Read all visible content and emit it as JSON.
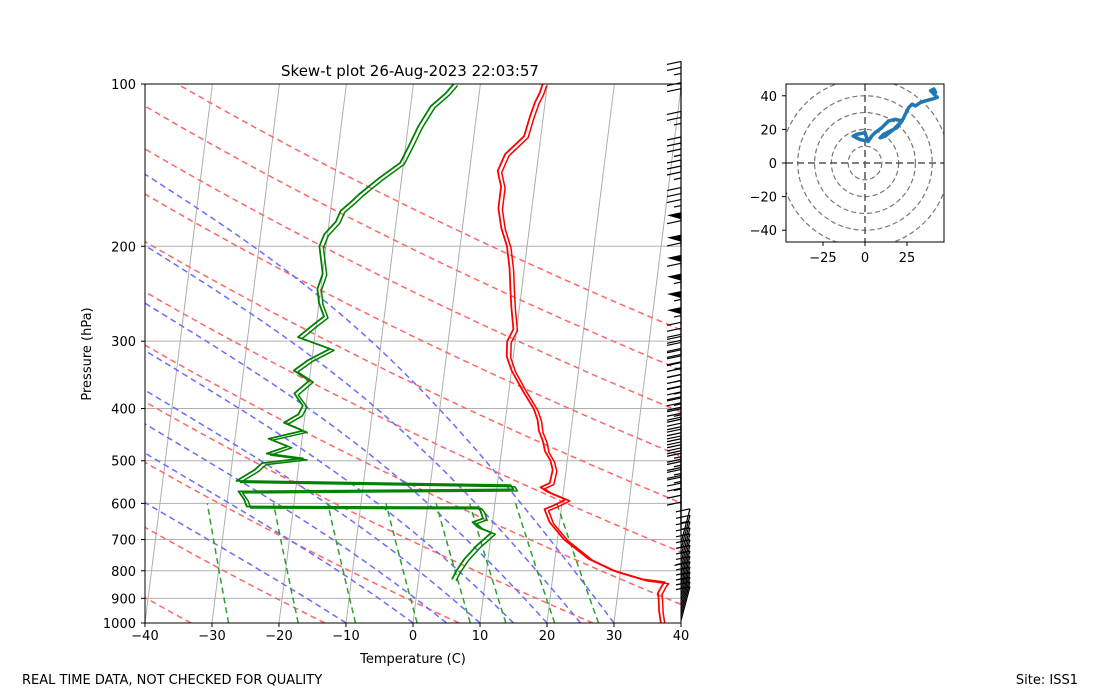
{
  "footer": {
    "quality_note": "REAL TIME DATA, NOT CHECKED FOR QUALITY",
    "site": "Site: ISS1"
  },
  "colors": {
    "temperature": "#ff0000",
    "dewpoint": "#008000",
    "dry_adiabat": "#ff6666",
    "moist_adiabat": "#6b6bff",
    "mixing_ratio": "#2ca02c",
    "isotherm": "#b0b0b0",
    "hodograph": "#1f77b4",
    "barb": "#000000"
  },
  "chart_data": [
    {
      "type": "line",
      "subtype": "skew-t",
      "title": "Skew-t plot 26-Aug-2023 22:03:57",
      "xlabel": "Temperature (C)",
      "ylabel": "Pressure (hPa)",
      "xlim": [
        -40,
        40
      ],
      "ylim": [
        1000,
        100
      ],
      "x_ticks": [
        "−40",
        "−30",
        "−20",
        "−10",
        "0",
        "10",
        "20",
        "30",
        "40"
      ],
      "x_tick_values": [
        -40,
        -30,
        -20,
        -10,
        0,
        10,
        20,
        30,
        40
      ],
      "y_ticks": [
        "1000",
        "900",
        "800",
        "700",
        "600",
        "500",
        "400",
        "300",
        "200",
        "100"
      ],
      "y_tick_values": [
        1000,
        900,
        800,
        700,
        600,
        500,
        400,
        300,
        200,
        100
      ],
      "isotherms": [
        -120,
        -110,
        -100,
        -90,
        -80,
        -70,
        -60,
        -50,
        -40,
        -30,
        -20,
        -10,
        0,
        10,
        20,
        30,
        40
      ],
      "dry_adiabats_theta_K": [
        240,
        260,
        280,
        300,
        320,
        340,
        360,
        380,
        400,
        420,
        440
      ],
      "moist_adiabats_thetaw_C": [
        -10,
        0,
        5,
        10,
        15,
        20,
        25,
        30
      ],
      "mixing_ratio_lines_gkg": [
        0.4,
        1,
        2,
        4,
        7,
        10,
        16,
        24
      ],
      "series": [
        {
          "name": "temperature",
          "points": [
            [
              1000,
              37.0
            ],
            [
              950,
              36.5
            ],
            [
              900,
              36.2
            ],
            [
              880,
              36.0
            ],
            [
              850,
              36.5
            ],
            [
              840,
              36.8
            ],
            [
              830,
              33.5
            ],
            [
              800,
              29.0
            ],
            [
              760,
              25.0
            ],
            [
              700,
              21.0
            ],
            [
              650,
              18.5
            ],
            [
              615,
              17.5
            ],
            [
              605,
              18.8
            ],
            [
              590,
              20.5
            ],
            [
              580,
              19.0
            ],
            [
              570,
              17.5
            ],
            [
              560,
              16.5
            ],
            [
              550,
              17.8
            ],
            [
              520,
              18.0
            ],
            [
              500,
              17.5
            ],
            [
              480,
              16.5
            ],
            [
              460,
              16.0
            ],
            [
              440,
              15.2
            ],
            [
              420,
              14.8
            ],
            [
              400,
              14.0
            ],
            [
              370,
              12.0
            ],
            [
              340,
              10.0
            ],
            [
              320,
              9.0
            ],
            [
              300,
              8.8
            ],
            [
              285,
              9.5
            ],
            [
              260,
              8.8
            ],
            [
              240,
              8.3
            ],
            [
              220,
              7.8
            ],
            [
              200,
              7.0
            ],
            [
              185,
              5.8
            ],
            [
              170,
              5.0
            ],
            [
              155,
              5.0
            ],
            [
              145,
              4.2
            ],
            [
              135,
              5.0
            ],
            [
              125,
              7.5
            ],
            [
              115,
              8.0
            ],
            [
              108,
              8.5
            ],
            [
              104,
              9.0
            ],
            [
              100,
              9.3
            ]
          ]
        },
        {
          "name": "dewpoint",
          "points": [
            [
              830,
              5.0
            ],
            [
              800,
              5.5
            ],
            [
              760,
              6.5
            ],
            [
              720,
              8.0
            ],
            [
              700,
              9.0
            ],
            [
              680,
              10.0
            ],
            [
              665,
              8.0
            ],
            [
              650,
              7.0
            ],
            [
              640,
              8.5
            ],
            [
              620,
              8.0
            ],
            [
              610,
              7.5
            ],
            [
              608,
              -27.0
            ],
            [
              590,
              -27.5
            ],
            [
              570,
              -28.5
            ],
            [
              565,
              12.5
            ],
            [
              555,
              12.0
            ],
            [
              545,
              -29.0
            ],
            [
              520,
              -26.5
            ],
            [
              505,
              -25.5
            ],
            [
              495,
              -19.5
            ],
            [
              485,
              -25.0
            ],
            [
              470,
              -22.0
            ],
            [
              455,
              -25.0
            ],
            [
              440,
              -20.0
            ],
            [
              425,
              -23.0
            ],
            [
              410,
              -21.0
            ],
            [
              395,
              -20.5
            ],
            [
              375,
              -22.0
            ],
            [
              355,
              -20.0
            ],
            [
              340,
              -22.5
            ],
            [
              325,
              -20.5
            ],
            [
              310,
              -17.5
            ],
            [
              295,
              -22.5
            ],
            [
              280,
              -20.5
            ],
            [
              270,
              -19.0
            ],
            [
              255,
              -20.0
            ],
            [
              240,
              -20.5
            ],
            [
              225,
              -20.0
            ],
            [
              212,
              -20.5
            ],
            [
              200,
              -21.0
            ],
            [
              190,
              -20.5
            ],
            [
              180,
              -19.0
            ],
            [
              172,
              -18.5
            ],
            [
              165,
              -17.0
            ],
            [
              160,
              -16.0
            ],
            [
              150,
              -13.5
            ],
            [
              140,
              -10.5
            ],
            [
              130,
              -9.5
            ],
            [
              120,
              -8.5
            ],
            [
              110,
              -7.0
            ],
            [
              104,
              -5.0
            ],
            [
              100,
              -4.0
            ]
          ]
        }
      ],
      "wind_barbs_pressure_hPa": [
        990,
        970,
        950,
        930,
        910,
        890,
        870,
        850,
        830,
        810,
        790,
        770,
        750,
        730,
        710,
        690,
        670,
        650,
        620,
        600,
        580,
        560,
        540,
        520,
        500,
        480,
        460,
        440,
        420,
        400,
        380,
        360,
        340,
        320,
        300,
        280,
        260,
        240,
        220,
        200,
        180,
        160,
        145,
        130,
        115,
        105
      ],
      "wind_barbs_speed_kt": [
        10,
        10,
        10,
        15,
        15,
        15,
        20,
        15,
        15,
        15,
        15,
        15,
        15,
        15,
        10,
        10,
        10,
        10,
        25,
        25,
        25,
        25,
        25,
        30,
        30,
        30,
        30,
        35,
        35,
        35,
        35,
        35,
        40,
        40,
        55,
        55,
        55,
        60,
        60,
        60,
        35,
        35,
        35,
        25,
        20,
        25
      ]
    },
    {
      "type": "line",
      "subtype": "hodograph",
      "title": "",
      "xlim": [
        -47,
        47
      ],
      "ylim": [
        -47,
        47
      ],
      "x_ticks": [
        "−25",
        "0",
        "25"
      ],
      "x_tick_values": [
        -25,
        0,
        25
      ],
      "y_ticks": [
        "40",
        "20",
        "0",
        "−20",
        "−40"
      ],
      "y_tick_values": [
        40,
        20,
        0,
        -20,
        -40
      ],
      "rings": [
        10,
        20,
        30,
        40,
        50
      ],
      "u": [
        2,
        0,
        -5,
        -7,
        -3,
        2,
        4,
        6,
        10,
        14,
        18,
        22,
        19,
        15,
        11,
        9,
        12,
        17,
        22,
        26,
        28,
        30,
        33,
        36,
        40,
        43,
        39,
        41,
        42,
        41
      ],
      "v": [
        12,
        18,
        17,
        16,
        14,
        13,
        16,
        18,
        21,
        25,
        26,
        25,
        21,
        19,
        17,
        15,
        16,
        20,
        25,
        33,
        35,
        34,
        36,
        37,
        38,
        39,
        43,
        44,
        42,
        41
      ]
    }
  ]
}
